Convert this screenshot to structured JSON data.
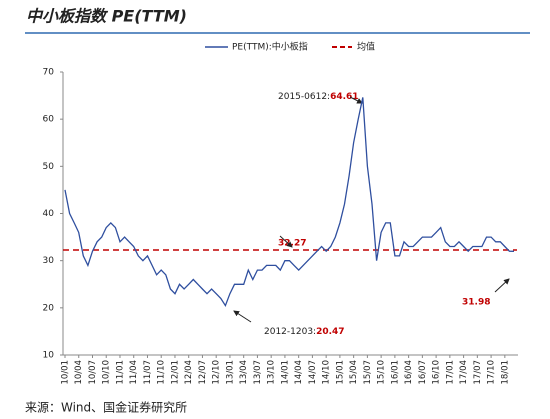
{
  "chart_data": {
    "type": "line",
    "title": "中小板指数 PE(TTM)",
    "categories": [
      "10/01",
      null,
      null,
      "10/04",
      null,
      null,
      "10/07",
      null,
      null,
      "10/10",
      null,
      null,
      "11/01",
      null,
      null,
      "11/04",
      null,
      null,
      "11/07",
      null,
      null,
      "11/10",
      null,
      null,
      "12/01",
      null,
      null,
      "12/04",
      null,
      null,
      "12/07",
      null,
      null,
      "12/10",
      null,
      null,
      "13/01",
      null,
      null,
      "13/04",
      null,
      null,
      "13/07",
      null,
      null,
      "13/10",
      null,
      null,
      "14/01",
      null,
      null,
      "14/04",
      null,
      null,
      "14/07",
      null,
      null,
      "14/10",
      null,
      null,
      "15/01",
      null,
      null,
      "15/04",
      null,
      null,
      "15/07",
      null,
      null,
      "15/10",
      null,
      null,
      "16/01",
      null,
      null,
      "16/04",
      null,
      null,
      "16/07",
      null,
      null,
      "16/10",
      null,
      null,
      "17/01",
      null,
      null,
      "17/04",
      null,
      null,
      "17/07",
      null,
      null,
      "17/10",
      null,
      null,
      "18/01",
      null,
      null
    ],
    "series": [
      {
        "name": "PE(TTM):中小板指",
        "color": "#2f4f9f",
        "values": [
          45,
          40,
          38,
          36,
          31,
          29,
          32,
          34,
          35,
          37,
          38,
          37,
          34,
          35,
          34,
          33,
          31,
          30,
          31,
          29,
          27,
          28,
          27,
          24,
          23,
          25,
          24,
          25,
          26,
          25,
          24,
          23,
          24,
          23,
          22,
          20.47,
          23,
          25,
          25,
          25,
          28,
          26,
          28,
          28,
          29,
          29,
          29,
          28,
          30,
          30,
          29,
          28,
          29,
          30,
          31,
          32,
          33,
          32,
          33,
          35,
          38,
          42,
          48,
          55,
          60,
          64.61,
          50,
          42,
          30,
          36,
          38,
          38,
          31,
          31,
          34,
          33,
          33,
          34,
          35,
          35,
          35,
          36,
          37,
          34,
          33,
          33,
          34,
          33,
          32,
          33,
          33,
          33,
          35,
          35,
          34,
          34,
          33,
          32,
          31.98
        ]
      }
    ],
    "reference_line": {
      "name": "均值",
      "value": 32.27,
      "color": "#c00000"
    },
    "annotations": [
      {
        "date": "2015-0612:",
        "value": 64.61
      },
      {
        "date": "2012-1203:",
        "value": 20.47
      },
      {
        "value": 31.98
      }
    ],
    "ylim": [
      10,
      70
    ],
    "yticks": [
      10,
      20,
      30,
      40,
      50,
      60,
      70
    ],
    "source": "来源：Wind、国金证券研究所"
  }
}
